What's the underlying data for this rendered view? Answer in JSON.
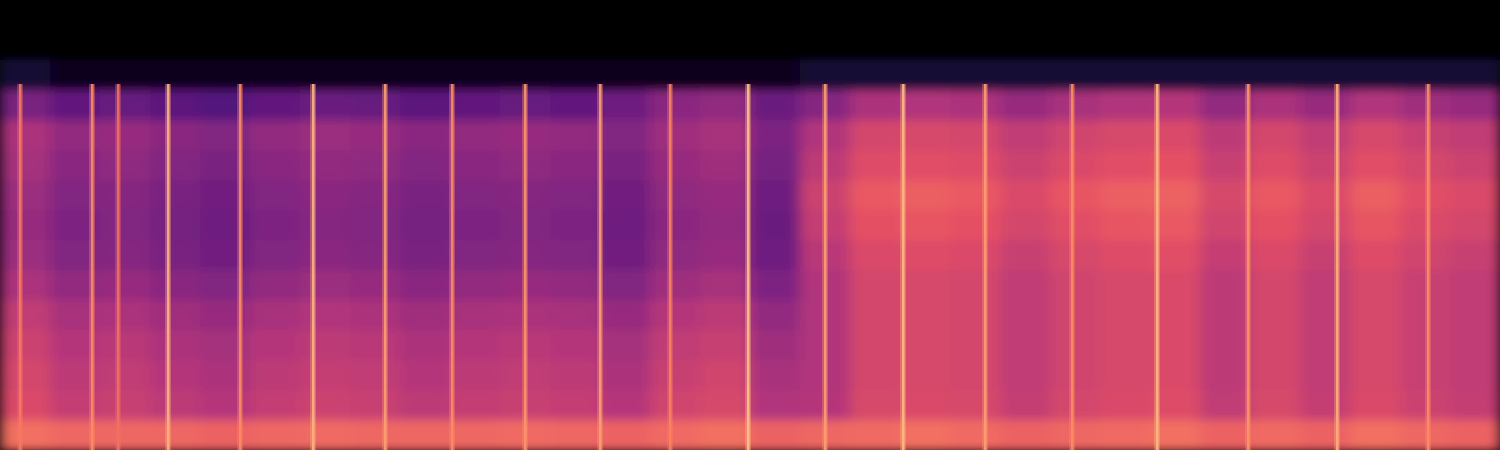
{
  "chart_data": {
    "type": "heatmap",
    "tick_labels": false,
    "xlim": [
      0,
      30
    ],
    "ylim": [
      0,
      15
    ],
    "xticks": [],
    "yticks": [],
    "color_range": [
      0,
      1
    ],
    "cells": [
      [
        0,
        0,
        0,
        0,
        0,
        0,
        0,
        0,
        0,
        0,
        0,
        0,
        0,
        0,
        0,
        0,
        0,
        0,
        0,
        0,
        0,
        0,
        0,
        0,
        0,
        0,
        0,
        0,
        0,
        0
      ],
      [
        0,
        0,
        0,
        0,
        0,
        0,
        0,
        0,
        0,
        0,
        0,
        0,
        0,
        0,
        0,
        0,
        0,
        0,
        0,
        0,
        0,
        0,
        0,
        0,
        0,
        0,
        0,
        0,
        0,
        0
      ],
      [
        0.1,
        0.05,
        0.05,
        0.05,
        0.05,
        0.05,
        0.05,
        0.05,
        0.05,
        0.05,
        0.05,
        0.05,
        0.05,
        0.05,
        0.05,
        0.05,
        0.1,
        0.1,
        0.1,
        0.1,
        0.1,
        0.1,
        0.1,
        0.1,
        0.1,
        0.1,
        0.1,
        0.1,
        0.1,
        0.1
      ],
      [
        0.36,
        0.3,
        0.31,
        0.28,
        0.26,
        0.3,
        0.32,
        0.31,
        0.28,
        0.3,
        0.31,
        0.3,
        0.33,
        0.4,
        0.42,
        0.32,
        0.39,
        0.48,
        0.49,
        0.48,
        0.43,
        0.47,
        0.49,
        0.5,
        0.42,
        0.48,
        0.43,
        0.49,
        0.45,
        0.43
      ],
      [
        0.48,
        0.42,
        0.43,
        0.4,
        0.38,
        0.42,
        0.44,
        0.43,
        0.4,
        0.42,
        0.43,
        0.42,
        0.38,
        0.45,
        0.47,
        0.37,
        0.49,
        0.58,
        0.59,
        0.58,
        0.53,
        0.57,
        0.59,
        0.6,
        0.52,
        0.58,
        0.53,
        0.59,
        0.55,
        0.53
      ],
      [
        0.46,
        0.4,
        0.41,
        0.38,
        0.36,
        0.4,
        0.42,
        0.41,
        0.38,
        0.4,
        0.41,
        0.4,
        0.36,
        0.43,
        0.45,
        0.35,
        0.52,
        0.61,
        0.62,
        0.61,
        0.56,
        0.6,
        0.62,
        0.63,
        0.55,
        0.61,
        0.56,
        0.62,
        0.58,
        0.56
      ],
      [
        0.44,
        0.38,
        0.39,
        0.36,
        0.34,
        0.38,
        0.4,
        0.39,
        0.36,
        0.38,
        0.39,
        0.38,
        0.34,
        0.41,
        0.43,
        0.33,
        0.56,
        0.65,
        0.66,
        0.65,
        0.6,
        0.64,
        0.66,
        0.67,
        0.59,
        0.65,
        0.6,
        0.66,
        0.62,
        0.6
      ],
      [
        0.43,
        0.37,
        0.38,
        0.35,
        0.33,
        0.37,
        0.39,
        0.38,
        0.35,
        0.37,
        0.38,
        0.37,
        0.33,
        0.4,
        0.42,
        0.32,
        0.54,
        0.63,
        0.64,
        0.63,
        0.58,
        0.62,
        0.64,
        0.65,
        0.57,
        0.63,
        0.58,
        0.64,
        0.6,
        0.58
      ],
      [
        0.44,
        0.38,
        0.39,
        0.36,
        0.34,
        0.38,
        0.4,
        0.39,
        0.36,
        0.38,
        0.39,
        0.38,
        0.34,
        0.41,
        0.43,
        0.33,
        0.51,
        0.6,
        0.61,
        0.6,
        0.55,
        0.59,
        0.61,
        0.62,
        0.54,
        0.6,
        0.55,
        0.61,
        0.57,
        0.55
      ],
      [
        0.48,
        0.42,
        0.43,
        0.4,
        0.38,
        0.42,
        0.44,
        0.43,
        0.4,
        0.42,
        0.43,
        0.42,
        0.38,
        0.45,
        0.47,
        0.37,
        0.49,
        0.58,
        0.59,
        0.58,
        0.53,
        0.57,
        0.59,
        0.6,
        0.52,
        0.58,
        0.53,
        0.59,
        0.55,
        0.53
      ],
      [
        0.53,
        0.47,
        0.48,
        0.45,
        0.43,
        0.47,
        0.49,
        0.48,
        0.45,
        0.47,
        0.48,
        0.47,
        0.43,
        0.5,
        0.52,
        0.42,
        0.49,
        0.58,
        0.59,
        0.58,
        0.53,
        0.57,
        0.59,
        0.6,
        0.52,
        0.58,
        0.53,
        0.59,
        0.55,
        0.53
      ],
      [
        0.56,
        0.5,
        0.51,
        0.48,
        0.46,
        0.5,
        0.52,
        0.51,
        0.48,
        0.5,
        0.51,
        0.5,
        0.46,
        0.53,
        0.55,
        0.45,
        0.49,
        0.58,
        0.59,
        0.58,
        0.53,
        0.57,
        0.59,
        0.6,
        0.52,
        0.58,
        0.53,
        0.59,
        0.55,
        0.53
      ],
      [
        0.58,
        0.52,
        0.53,
        0.5,
        0.48,
        0.52,
        0.54,
        0.53,
        0.5,
        0.52,
        0.53,
        0.52,
        0.48,
        0.55,
        0.57,
        0.47,
        0.49,
        0.58,
        0.59,
        0.58,
        0.53,
        0.57,
        0.59,
        0.6,
        0.52,
        0.58,
        0.53,
        0.59,
        0.55,
        0.53
      ],
      [
        0.6,
        0.54,
        0.55,
        0.52,
        0.5,
        0.54,
        0.56,
        0.55,
        0.52,
        0.54,
        0.55,
        0.54,
        0.5,
        0.57,
        0.59,
        0.49,
        0.5,
        0.59,
        0.6,
        0.59,
        0.54,
        0.58,
        0.6,
        0.61,
        0.53,
        0.59,
        0.54,
        0.6,
        0.56,
        0.54
      ],
      [
        0.7,
        0.68,
        0.68,
        0.68,
        0.67,
        0.68,
        0.69,
        0.68,
        0.68,
        0.68,
        0.69,
        0.68,
        0.67,
        0.69,
        0.7,
        0.67,
        0.68,
        0.69,
        0.7,
        0.69,
        0.67,
        0.68,
        0.69,
        0.7,
        0.67,
        0.69,
        0.67,
        0.7,
        0.68,
        0.67
      ]
    ],
    "transient_x": [
      0.4,
      1.84,
      2.36,
      3.36,
      4.8,
      6.26,
      7.7,
      9.04,
      10.5,
      12.0,
      13.4,
      14.96,
      16.5,
      18.06,
      19.7,
      21.44,
      23.14,
      24.96,
      26.74,
      28.56
    ],
    "transient_values": [
      0.72,
      0.76,
      0.7,
      0.85,
      0.76,
      0.85,
      0.8,
      0.76,
      0.78,
      0.8,
      0.74,
      0.88,
      0.8,
      0.86,
      0.8,
      0.76,
      0.86,
      0.78,
      0.84,
      0.76
    ],
    "transient_ylim": [
      0,
      12.2
    ]
  }
}
